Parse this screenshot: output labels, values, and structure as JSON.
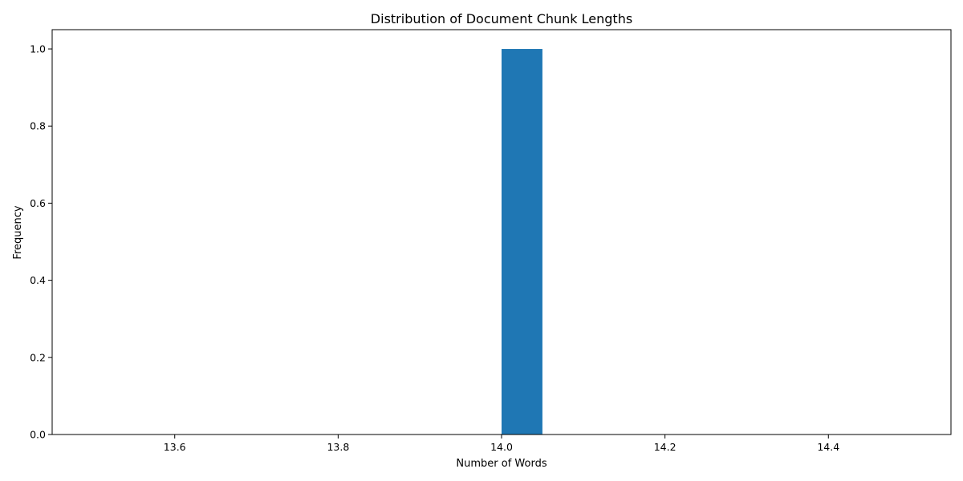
{
  "chart_data": {
    "type": "bar",
    "title": "Distribution of Document Chunk Lengths",
    "xlabel": "Number of Words",
    "ylabel": "Frequency",
    "xlim": [
      13.45,
      14.55
    ],
    "ylim": [
      0,
      1.05
    ],
    "xticks": [
      "13.6",
      "13.8",
      "14.0",
      "14.2",
      "14.4"
    ],
    "yticks": [
      "0.0",
      "0.2",
      "0.4",
      "0.6",
      "0.8",
      "1.0"
    ],
    "bins": [
      {
        "x0": 14.0,
        "x1": 14.05,
        "value": 1
      }
    ],
    "bar_color": "#1f77b4",
    "grid": false,
    "legend": "none"
  }
}
